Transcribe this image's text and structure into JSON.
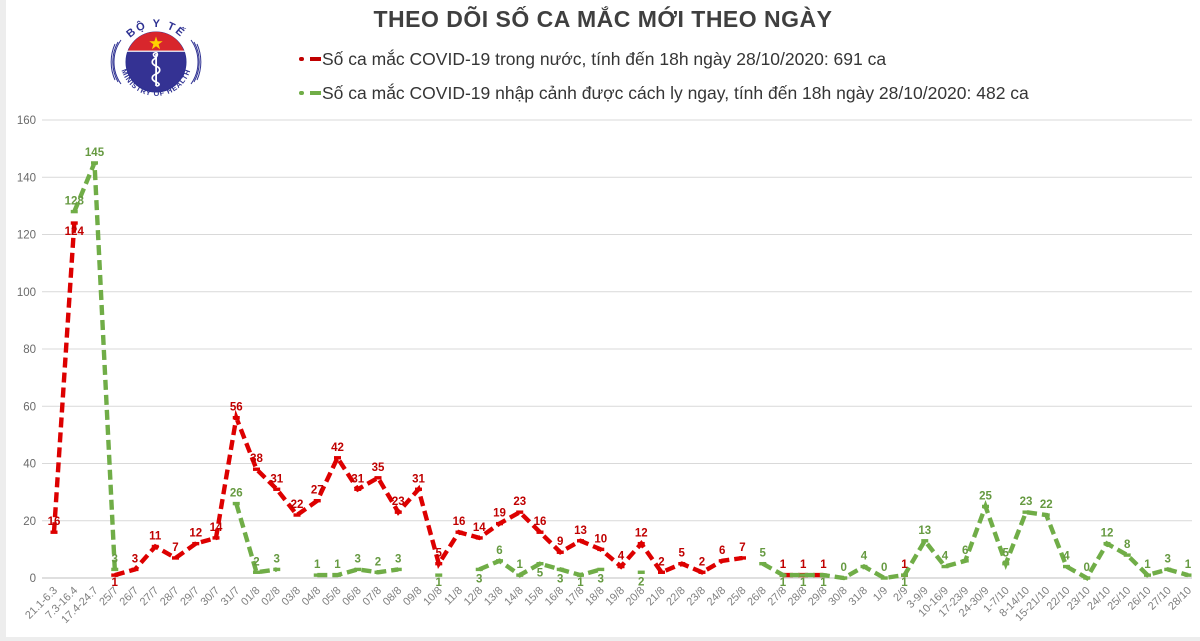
{
  "logo": {
    "top_text": "BỘ Y TẾ",
    "bottom_text": "MINISTRY OF HEALTH"
  },
  "title": "THEO DÕI SỐ CA MẮC MỚI THEO NGÀY",
  "legend": [
    {
      "label": "Số ca mắc COVID-19 trong nước, tính đến 18h ngày 28/10/2020: 691 ca",
      "color": "#c00000"
    },
    {
      "label": "Số ca mắc COVID-19 nhập cảnh được cách ly ngay, tính đến 18h ngày 28/10/2020: 482 ca",
      "color": "#70ad47"
    }
  ],
  "colors": {
    "domestic_line": "#dd0000",
    "domestic_label": "#c00000",
    "imported_line": "#70ad47",
    "imported_label": "#669a41",
    "gridline": "#d9d9d9",
    "axis_line": "#bfbfbf",
    "tick_label": "#7f7f7f",
    "title_text": "#3f3f3f"
  },
  "chart_data": {
    "type": "line",
    "line_style": "dashed",
    "grid": true,
    "legend_position": "top",
    "ylim": [
      0,
      160
    ],
    "ytick_step": 20,
    "xlabel": "",
    "ylabel": "",
    "categories": [
      "21.1-6.3",
      "7.3-16.4",
      "17.4-24.7",
      "25/7",
      "26/7",
      "27/7",
      "28/7",
      "29/7",
      "30/7",
      "31/7",
      "01/8",
      "02/8",
      "03/8",
      "04/8",
      "05/8",
      "06/8",
      "07/8",
      "08/8",
      "09/8",
      "10/8",
      "11/8",
      "12/8",
      "13/8",
      "14/8",
      "15/8",
      "16/8",
      "17/8",
      "18/8",
      "19/8",
      "20/8",
      "21/8",
      "22/8",
      "23/8",
      "24/8",
      "25/8",
      "26/8",
      "27/8",
      "28/8",
      "29/8",
      "30/8",
      "31/8",
      "1/9",
      "2/9",
      "3-9/9",
      "10-16/9",
      "17-23/9",
      "24-30/9",
      "1-7/10",
      "8-14/10",
      "15-21/10",
      "22/10",
      "23/10",
      "24/10",
      "25/10",
      "26/10",
      "27/10",
      "28/10"
    ],
    "series": [
      {
        "name": "Số ca mắc COVID-19 trong nước",
        "total": 691,
        "color": "#dd0000",
        "label_color": "#c00000",
        "values": [
          16,
          124,
          null,
          1,
          3,
          11,
          7,
          12,
          14,
          56,
          38,
          31,
          22,
          27,
          42,
          31,
          35,
          23,
          31,
          5,
          16,
          14,
          19,
          23,
          16,
          9,
          13,
          10,
          4,
          12,
          2,
          5,
          2,
          6,
          7,
          null,
          1,
          1,
          1,
          null,
          null,
          null,
          1,
          null,
          null,
          null,
          null,
          null,
          null,
          null,
          null,
          null,
          null,
          null,
          null,
          null,
          null
        ]
      },
      {
        "name": "Số ca mắc COVID-19 nhập cảnh được cách ly ngay",
        "total": 482,
        "color": "#70ad47",
        "label_color": "#669a41",
        "values": [
          null,
          128,
          145,
          3,
          null,
          null,
          null,
          null,
          null,
          26,
          2,
          3,
          null,
          1,
          1,
          3,
          2,
          3,
          null,
          1,
          null,
          3,
          6,
          1,
          5,
          3,
          1,
          3,
          null,
          2,
          null,
          null,
          null,
          null,
          null,
          5,
          1,
          1,
          1,
          0,
          4,
          0,
          1,
          13,
          4,
          6,
          25,
          5,
          23,
          22,
          4,
          0,
          12,
          8,
          1,
          3,
          1
        ]
      }
    ]
  }
}
